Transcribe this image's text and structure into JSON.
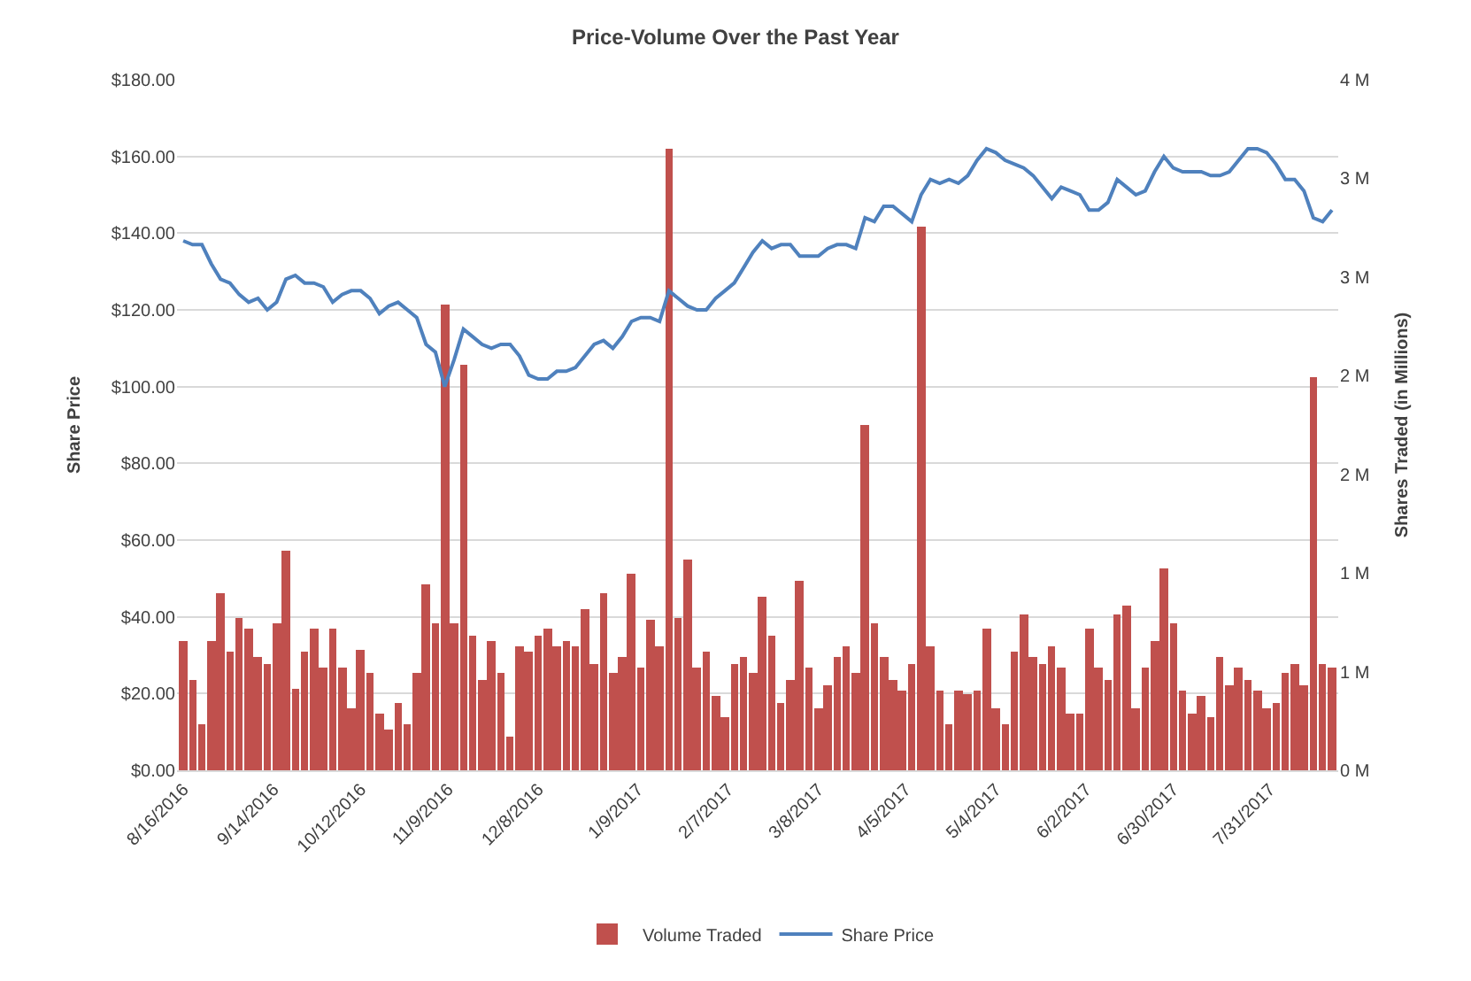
{
  "chart_data": {
    "type": "bar",
    "title": "Price-Volume Over the Past Year",
    "ylabel": "Share Price",
    "y2label": "Shares Traded (in Millions)",
    "x": [
      "2016-08-16",
      "2016-08-19",
      "2016-08-22",
      "2016-08-25",
      "2016-08-28",
      "2016-08-31",
      "2016-09-03",
      "2016-09-06",
      "2016-09-09",
      "2016-09-12",
      "2016-09-15",
      "2016-09-18",
      "2016-09-21",
      "2016-09-24",
      "2016-09-27",
      "2016-09-30",
      "2016-10-03",
      "2016-10-06",
      "2016-10-09",
      "2016-10-12",
      "2016-10-15",
      "2016-10-18",
      "2016-10-21",
      "2016-10-24",
      "2016-10-27",
      "2016-10-30",
      "2016-11-02",
      "2016-11-05",
      "2016-11-08",
      "2016-11-11",
      "2016-11-14",
      "2016-11-17",
      "2016-11-20",
      "2016-11-23",
      "2016-11-26",
      "2016-11-29",
      "2016-12-02",
      "2016-12-05",
      "2016-12-08",
      "2016-12-11",
      "2016-12-14",
      "2016-12-17",
      "2016-12-20",
      "2016-12-23",
      "2016-12-26",
      "2016-12-29",
      "2017-01-01",
      "2017-01-04",
      "2017-01-07",
      "2017-01-10",
      "2017-01-13",
      "2017-01-16",
      "2017-01-19",
      "2017-01-22",
      "2017-01-25",
      "2017-01-28",
      "2017-01-31",
      "2017-02-03",
      "2017-02-06",
      "2017-02-09",
      "2017-02-12",
      "2017-02-15",
      "2017-02-18",
      "2017-02-21",
      "2017-02-24",
      "2017-02-27",
      "2017-03-02",
      "2017-03-05",
      "2017-03-08",
      "2017-03-11",
      "2017-03-14",
      "2017-03-17",
      "2017-03-20",
      "2017-03-23",
      "2017-03-26",
      "2017-03-29",
      "2017-04-01",
      "2017-04-04",
      "2017-04-07",
      "2017-04-10",
      "2017-04-13",
      "2017-04-16",
      "2017-04-19",
      "2017-04-22",
      "2017-04-25",
      "2017-04-28",
      "2017-05-01",
      "2017-05-04",
      "2017-05-07",
      "2017-05-10",
      "2017-05-13",
      "2017-05-16",
      "2017-05-19",
      "2017-05-22",
      "2017-05-25",
      "2017-05-28",
      "2017-05-31",
      "2017-06-03",
      "2017-06-06",
      "2017-06-09",
      "2017-06-12",
      "2017-06-15",
      "2017-06-18",
      "2017-06-21",
      "2017-06-24",
      "2017-06-27",
      "2017-06-30",
      "2017-07-03",
      "2017-07-06",
      "2017-07-09",
      "2017-07-12",
      "2017-07-15",
      "2017-07-18",
      "2017-07-21",
      "2017-07-24",
      "2017-07-27",
      "2017-07-30",
      "2017-08-02",
      "2017-08-05",
      "2017-08-08",
      "2017-08-11",
      "2017-08-14",
      "2017-08-17",
      "2017-08-20"
    ],
    "series": [
      {
        "name": "Volume Traded",
        "axis": "y2",
        "color": "#c0504d",
        "values": [
          0.75,
          0.52,
          0.27,
          0.75,
          1.03,
          0.69,
          0.88,
          0.82,
          0.66,
          0.62,
          0.85,
          1.27,
          0.47,
          0.69,
          0.82,
          0.59,
          0.82,
          0.59,
          0.36,
          0.7,
          0.56,
          0.33,
          0.24,
          0.39,
          0.27,
          0.56,
          1.08,
          0.85,
          2.7,
          0.85,
          2.35,
          0.78,
          0.52,
          0.75,
          0.56,
          0.2,
          0.72,
          0.69,
          0.78,
          0.82,
          0.72,
          0.75,
          0.72,
          0.93,
          0.62,
          1.03,
          0.56,
          0.66,
          1.14,
          0.59,
          0.87,
          0.72,
          3.6,
          0.88,
          1.22,
          0.59,
          0.69,
          0.43,
          0.31,
          0.62,
          0.66,
          0.56,
          1.01,
          0.78,
          0.39,
          0.52,
          1.1,
          0.59,
          0.36,
          0.49,
          0.66,
          0.72,
          0.56,
          2.0,
          0.85,
          0.66,
          0.52,
          0.46,
          0.62,
          3.15,
          0.72,
          0.46,
          0.27,
          0.46,
          0.44,
          0.46,
          0.82,
          0.36,
          0.27,
          0.69,
          0.9,
          0.66,
          0.62,
          0.72,
          0.59,
          0.33,
          0.33,
          0.82,
          0.59,
          0.52,
          0.9,
          0.95,
          0.36,
          0.59,
          0.75,
          1.17,
          0.85,
          0.46,
          0.33,
          0.43,
          0.31,
          0.66,
          0.49,
          0.59,
          0.52,
          0.46,
          0.36,
          0.39,
          0.56,
          0.62,
          0.49,
          2.28,
          0.62,
          0.59
        ]
      },
      {
        "name": "Share Price",
        "type": "line",
        "color": "#4f81bd",
        "values": [
          138,
          137,
          137,
          132,
          128,
          127,
          124,
          122,
          123,
          120,
          122,
          128,
          129,
          127,
          127,
          126,
          122,
          124,
          125,
          125,
          123,
          119,
          121,
          122,
          120,
          118,
          111,
          109,
          100,
          107,
          115,
          113,
          111,
          110,
          111,
          111,
          108,
          103,
          102,
          102,
          104,
          104,
          105,
          108,
          111,
          112,
          110,
          113,
          117,
          118,
          118,
          117,
          125,
          123,
          121,
          120,
          120,
          123,
          125,
          127,
          131,
          135,
          138,
          136,
          137,
          137,
          134,
          134,
          134,
          136,
          137,
          137,
          136,
          144,
          143,
          147,
          147,
          145,
          143,
          150,
          154,
          153,
          154,
          153,
          155,
          159,
          162,
          161,
          159,
          158,
          157,
          155,
          152,
          149,
          152,
          151,
          150,
          146,
          146,
          148,
          154,
          152,
          150,
          151,
          156,
          160,
          157,
          156,
          156,
          156,
          155,
          155,
          156,
          159,
          162,
          162,
          161,
          158,
          154,
          154,
          151,
          144,
          143,
          146
        ]
      }
    ],
    "xlim": [
      "2016-08-14",
      "2017-08-22"
    ],
    "xticks": [
      {
        "value": "2016-08-16",
        "label": "8/16/2016"
      },
      {
        "value": "2016-09-14",
        "label": "9/14/2016"
      },
      {
        "value": "2016-10-12",
        "label": "10/12/2016"
      },
      {
        "value": "2016-11-09",
        "label": "11/9/2016"
      },
      {
        "value": "2016-12-08",
        "label": "12/8/2016"
      },
      {
        "value": "2017-01-09",
        "label": "1/9/2017"
      },
      {
        "value": "2017-02-07",
        "label": "2/7/2017"
      },
      {
        "value": "2017-03-08",
        "label": "3/8/2017"
      },
      {
        "value": "2017-04-05",
        "label": "4/5/2017"
      },
      {
        "value": "2017-05-04",
        "label": "5/4/2017"
      },
      {
        "value": "2017-06-02",
        "label": "6/2/2017"
      },
      {
        "value": "2017-06-30",
        "label": "6/30/2017"
      },
      {
        "value": "2017-07-31",
        "label": "7/31/2017"
      }
    ],
    "ylim": [
      0,
      180
    ],
    "yticks": [
      {
        "value": 0,
        "label": "$0.00"
      },
      {
        "value": 20,
        "label": "$20.00"
      },
      {
        "value": 40,
        "label": "$40.00"
      },
      {
        "value": 60,
        "label": "$60.00"
      },
      {
        "value": 80,
        "label": "$80.00"
      },
      {
        "value": 100,
        "label": "$100.00"
      },
      {
        "value": 120,
        "label": "$120.00"
      },
      {
        "value": 140,
        "label": "$140.00"
      },
      {
        "value": 160,
        "label": "$160.00"
      },
      {
        "value": 180,
        "label": "$180.00"
      }
    ],
    "y2lim": [
      0,
      4
    ],
    "y2ticks": [
      {
        "value": 0,
        "label": "0 M"
      },
      {
        "value": 0.571,
        "label": "1 M"
      },
      {
        "value": 1.143,
        "label": "1 M"
      },
      {
        "value": 1.714,
        "label": "2 M"
      },
      {
        "value": 2.286,
        "label": "2 M"
      },
      {
        "value": 2.857,
        "label": "3 M"
      },
      {
        "value": 3.429,
        "label": "3 M"
      },
      {
        "value": 4,
        "label": "4 M"
      }
    ],
    "grid": "y",
    "legend": "bottom",
    "line_style": "solid",
    "marker": "none"
  }
}
